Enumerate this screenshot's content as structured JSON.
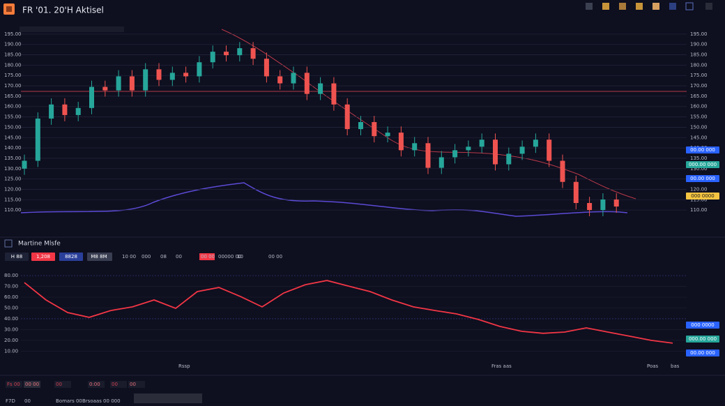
{
  "header": {
    "title": "FR '01. 20'H Aktisel"
  },
  "main_chart": {
    "type": "candlestick",
    "up_color": "#26a69a",
    "down_color": "#ef5350",
    "ylim": [
      107,
      198
    ],
    "yticks": [
      {
        "value": 195,
        "label": "195.00"
      },
      {
        "value": 190,
        "label": "190.00"
      },
      {
        "value": 185,
        "label": "185.00"
      },
      {
        "value": 180,
        "label": "180.00"
      },
      {
        "value": 175,
        "label": "175.00"
      },
      {
        "value": 170,
        "label": "170.00"
      },
      {
        "value": 165,
        "label": "165.00"
      },
      {
        "value": 160,
        "label": "160.00"
      },
      {
        "value": 155,
        "label": "155.00"
      },
      {
        "value": 150,
        "label": "150.00"
      },
      {
        "value": 145,
        "label": "145.00"
      },
      {
        "value": 140,
        "label": "140.00"
      },
      {
        "value": 135,
        "label": "135.00"
      },
      {
        "value": 130,
        "label": "130.00"
      },
      {
        "value": 125,
        "label": "125.00"
      },
      {
        "value": 120,
        "label": "120.00"
      },
      {
        "value": 115,
        "label": "115.00"
      },
      {
        "value": 110,
        "label": "110.00"
      }
    ],
    "open": [
      130,
      133.8,
      154.2,
      161,
      155.9,
      159.3,
      169.5,
      167.8,
      174.6,
      167.8,
      178,
      172.9,
      176.3,
      174.6,
      181.4,
      186.5,
      184.8,
      188.2,
      183.1,
      174.6,
      171.2,
      176.3,
      166.1,
      171.2,
      161,
      149.1,
      152.5,
      145.7,
      147.4,
      138.9,
      142.3,
      130.4,
      135.5,
      138.9,
      140.6,
      144,
      132.1,
      137.2,
      140.6,
      144,
      133.8,
      123.6,
      113.4,
      110,
      115.1
    ],
    "high": [
      136.8,
      157.2,
      164,
      164,
      162.3,
      172.5,
      172.5,
      177.6,
      177.6,
      181,
      181,
      179.3,
      179.3,
      184.4,
      189.5,
      189.5,
      191.2,
      191.2,
      186.1,
      177.6,
      179.3,
      179.3,
      174.2,
      174.2,
      164,
      155.5,
      155.5,
      150.4,
      150.4,
      145.3,
      145.3,
      138.5,
      141.9,
      143.6,
      147,
      147,
      140.2,
      143.6,
      147,
      147,
      136.8,
      126.6,
      116.4,
      118.1,
      118.1
    ],
    "low": [
      127,
      130.8,
      151.2,
      152.9,
      152.9,
      156.3,
      164.8,
      164.8,
      164.8,
      164.8,
      169.9,
      169.9,
      171.6,
      171.6,
      178.4,
      181.8,
      181.8,
      180.1,
      171.6,
      168.2,
      168.2,
      163.1,
      163.1,
      158,
      146.1,
      146.1,
      142.7,
      142.7,
      135.9,
      135.9,
      127.4,
      127.4,
      132.5,
      135.9,
      137.6,
      129.1,
      129.1,
      134.2,
      137.6,
      130.8,
      120.6,
      110.4,
      107,
      107,
      108.7
    ],
    "close": [
      133.8,
      154.2,
      161,
      155.9,
      159.3,
      169.5,
      167.8,
      174.6,
      167.8,
      178,
      172.9,
      176.3,
      174.6,
      181.4,
      186.5,
      184.8,
      188.2,
      183.1,
      174.6,
      171.2,
      176.3,
      166.1,
      171.2,
      161,
      149.1,
      152.5,
      145.7,
      147.4,
      138.9,
      142.3,
      130.4,
      135.5,
      138.9,
      140.6,
      144,
      132.1,
      137.2,
      140.6,
      144,
      133.8,
      123.6,
      113.4,
      110,
      115.1,
      111.7
    ],
    "price_tags": [
      {
        "label": "00.00 000",
        "color": "#2962ff"
      },
      {
        "label": "000.00 000",
        "color": "#26a69a"
      },
      {
        "label": "00.00 000",
        "color": "#2962ff"
      },
      {
        "label": "000 0000",
        "color": "#f5c542"
      }
    ]
  },
  "panel": {
    "title": "Martine Mlsfe",
    "buttons": [
      "H 88",
      "1,208",
      "8828",
      "M8 8M"
    ],
    "toolbar": [
      "10 00",
      "000",
      "08",
      "00",
      "00 00",
      "00000 00",
      "10",
      "00 00"
    ]
  },
  "lower_chart": {
    "type": "line",
    "color": "#f23645",
    "ylim": [
      7,
      82
    ],
    "yticks": [
      {
        "value": 80,
        "label": "80.00"
      },
      {
        "value": 70,
        "label": "70.00"
      },
      {
        "value": 60,
        "label": "60.00"
      },
      {
        "value": 50,
        "label": "50.00"
      },
      {
        "value": 40,
        "label": "40.00"
      },
      {
        "value": 30,
        "label": "30.00"
      },
      {
        "value": 20,
        "label": "20.00"
      },
      {
        "value": 10,
        "label": "10.00"
      }
    ],
    "values": [
      73.5,
      57.4,
      45.8,
      41.3,
      47.7,
      51,
      57.4,
      49.7,
      65.2,
      69,
      60.6,
      51,
      63.9,
      71.6,
      75.5,
      70.3,
      65.2,
      57.4,
      51,
      47.7,
      44.5,
      39.4,
      32.9,
      28.4,
      26.5,
      27.7,
      31.6,
      27.7,
      23.9,
      20,
      17.4
    ],
    "price_tags": [
      {
        "label": "000 0000",
        "color": "#2962ff"
      },
      {
        "label": "000.00 000",
        "color": "#26a69a"
      },
      {
        "label": "00.00 000",
        "color": "#2962ff"
      }
    ]
  },
  "footer": {
    "labels": [
      "Rssp",
      "Fras aas",
      "Poas",
      "bas"
    ],
    "tabs": [
      "Fs 00",
      "00 00",
      "00",
      "0:00",
      "00",
      "00"
    ],
    "status": [
      "F7D",
      "00",
      "Bomars 00",
      "Brsoaas 00 000"
    ]
  }
}
